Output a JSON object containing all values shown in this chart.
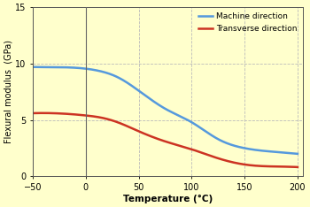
{
  "title": "",
  "xlabel": "Temperature (°C)",
  "ylabel": "Flexural modulus  (GPa)",
  "background_color": "#ffffcc",
  "xlim": [
    -50,
    205
  ],
  "ylim": [
    0,
    15
  ],
  "xticks": [
    -50,
    0,
    50,
    100,
    150,
    200
  ],
  "yticks": [
    0,
    5,
    10,
    15
  ],
  "machine_x": [
    -50,
    -25,
    0,
    15,
    30,
    50,
    75,
    100,
    125,
    150,
    175,
    200
  ],
  "machine_y": [
    9.7,
    9.68,
    9.55,
    9.3,
    8.8,
    7.6,
    6.0,
    4.8,
    3.3,
    2.5,
    2.2,
    2.0
  ],
  "transverse_x": [
    -50,
    -25,
    0,
    15,
    30,
    50,
    75,
    100,
    125,
    150,
    175,
    200
  ],
  "transverse_y": [
    5.6,
    5.58,
    5.4,
    5.2,
    4.8,
    4.0,
    3.1,
    2.4,
    1.6,
    1.05,
    0.88,
    0.82
  ],
  "machine_color": "#5599dd",
  "transverse_color": "#cc3322",
  "legend_machine": "Machine direction",
  "legend_transverse": "Transverse direction",
  "grid_color": "#bbbbbb",
  "vline_color": "#666666",
  "vline_x": 0
}
